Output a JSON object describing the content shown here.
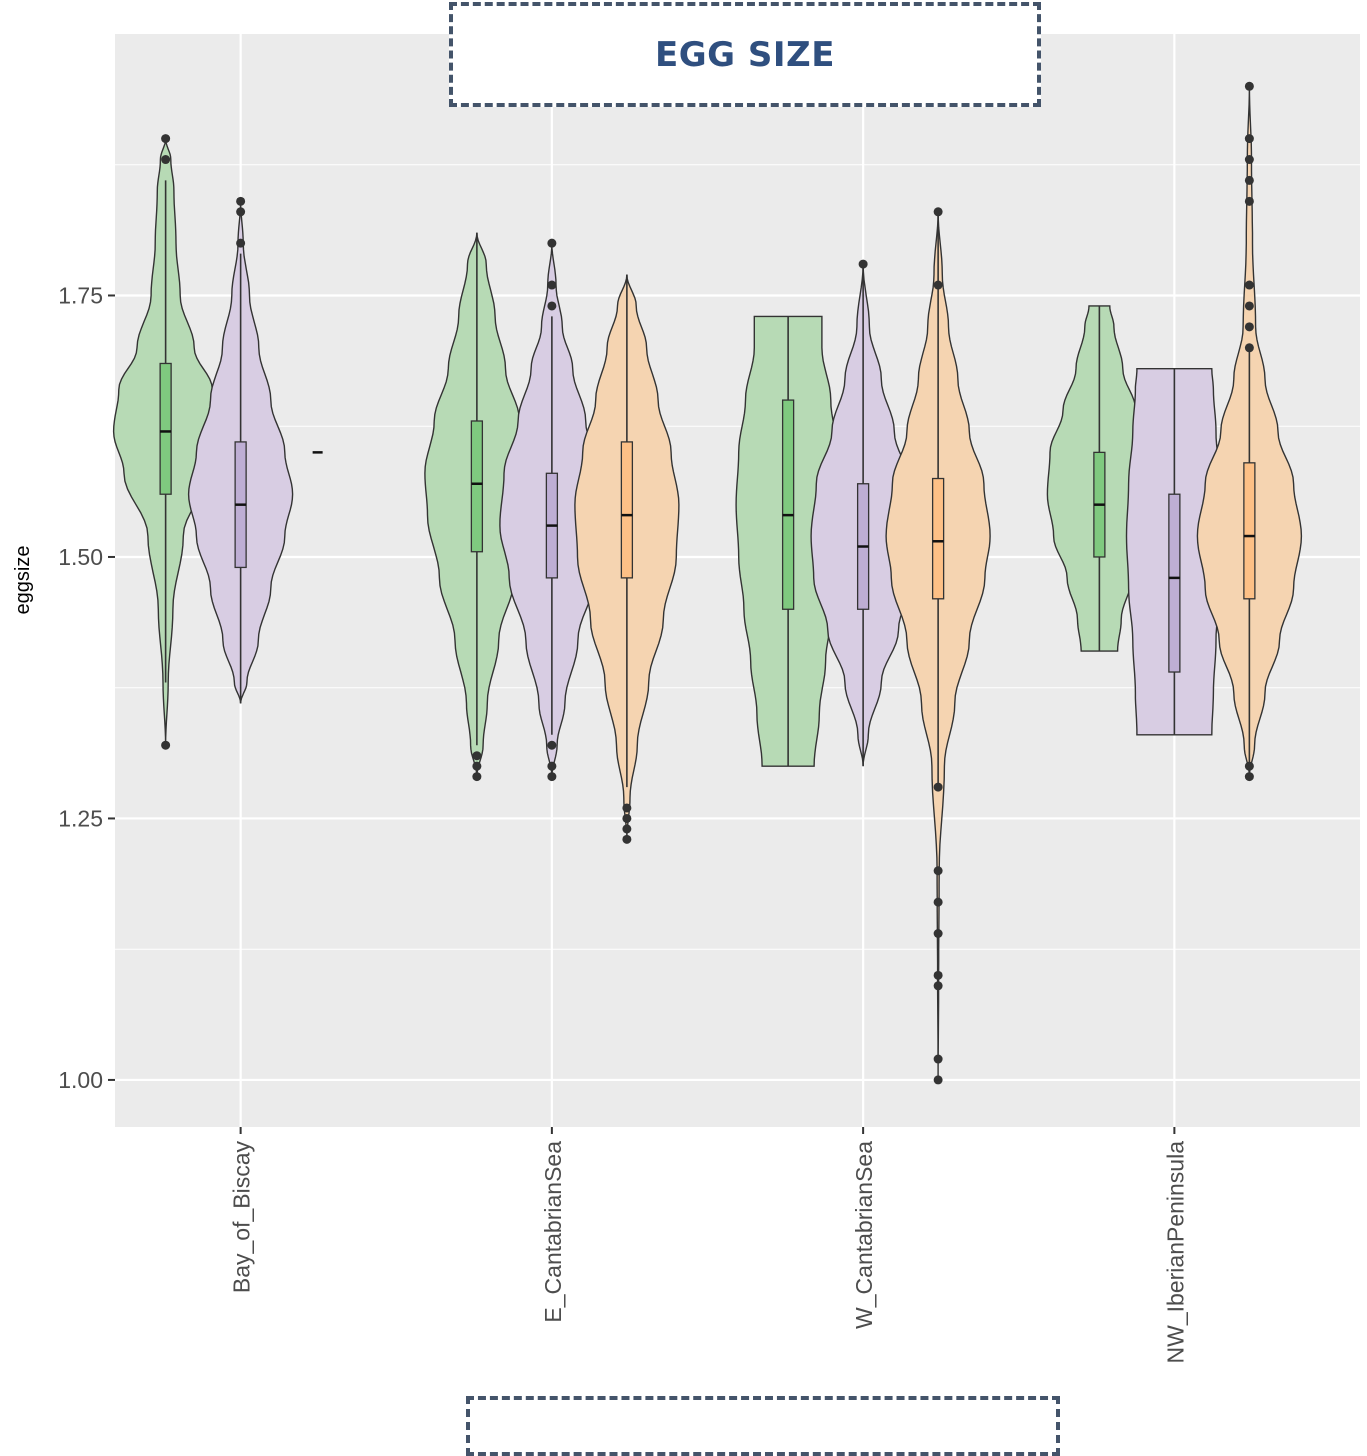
{
  "title": "EGG SIZE",
  "chart_data": {
    "type": "violin",
    "ylabel": "eggsize",
    "xlabel": "",
    "ylim": [
      0.955,
      2.0
    ],
    "yticks": [
      1.0,
      1.25,
      1.5,
      1.75
    ],
    "ytick_labels": [
      "1.00",
      "1.25",
      "1.50",
      "1.75"
    ],
    "grid": true,
    "background": "#ebebeb",
    "categories": [
      "Bay_of_Biscay",
      "E_CantabrianSea",
      "W_CantabrianSea",
      "NW_IberianPeninsula"
    ],
    "series_colors": [
      "#b7dab5",
      "#d8cde3",
      "#f5d4b1"
    ],
    "box_colors": [
      "#7fc97f",
      "#beaed4",
      "#fdc086"
    ],
    "groups": [
      {
        "category": "Bay_of_Biscay",
        "violins": [
          {
            "series": 0,
            "min": 1.32,
            "max": 1.9,
            "profile": [
              [
                1.32,
                0.0
              ],
              [
                1.38,
                0.05
              ],
              [
                1.45,
                0.14
              ],
              [
                1.52,
                0.34
              ],
              [
                1.58,
                0.8
              ],
              [
                1.62,
                1.0
              ],
              [
                1.66,
                0.9
              ],
              [
                1.7,
                0.55
              ],
              [
                1.75,
                0.28
              ],
              [
                1.8,
                0.2
              ],
              [
                1.85,
                0.16
              ],
              [
                1.88,
                0.1
              ],
              [
                1.9,
                0.0
              ]
            ],
            "box": {
              "q1": 1.56,
              "median": 1.62,
              "q3": 1.685,
              "wlo": 1.38,
              "whi": 1.86
            },
            "outliers": [
              1.32,
              1.88,
              1.9
            ]
          },
          {
            "series": 1,
            "min": 1.36,
            "max": 1.84,
            "profile": [
              [
                1.36,
                0.0
              ],
              [
                1.38,
                0.12
              ],
              [
                1.42,
                0.34
              ],
              [
                1.47,
                0.58
              ],
              [
                1.52,
                0.85
              ],
              [
                1.56,
                1.0
              ],
              [
                1.6,
                0.85
              ],
              [
                1.65,
                0.58
              ],
              [
                1.7,
                0.35
              ],
              [
                1.75,
                0.17
              ],
              [
                1.8,
                0.05
              ],
              [
                1.84,
                0.0
              ]
            ],
            "box": {
              "q1": 1.49,
              "median": 1.55,
              "q3": 1.61,
              "wlo": 1.36,
              "whi": 1.79
            },
            "outliers": [
              1.8,
              1.83,
              1.84
            ],
            "extra_median": 1.6
          }
        ]
      },
      {
        "category": "E_CantabrianSea",
        "violins": [
          {
            "series": 0,
            "min": 1.29,
            "max": 1.81,
            "profile": [
              [
                1.29,
                0.0
              ],
              [
                1.32,
                0.12
              ],
              [
                1.36,
                0.2
              ],
              [
                1.42,
                0.42
              ],
              [
                1.48,
                0.72
              ],
              [
                1.54,
                0.95
              ],
              [
                1.58,
                1.0
              ],
              [
                1.63,
                0.82
              ],
              [
                1.68,
                0.55
              ],
              [
                1.73,
                0.35
              ],
              [
                1.78,
                0.18
              ],
              [
                1.81,
                0.0
              ]
            ],
            "box": {
              "q1": 1.505,
              "median": 1.57,
              "q3": 1.63,
              "wlo": 1.32,
              "whi": 1.81
            },
            "outliers": [
              1.29,
              1.3,
              1.31
            ]
          },
          {
            "series": 1,
            "min": 1.29,
            "max": 1.8,
            "profile": [
              [
                1.29,
                0.0
              ],
              [
                1.32,
                0.1
              ],
              [
                1.36,
                0.25
              ],
              [
                1.42,
                0.5
              ],
              [
                1.48,
                0.82
              ],
              [
                1.53,
                1.0
              ],
              [
                1.58,
                0.92
              ],
              [
                1.63,
                0.65
              ],
              [
                1.68,
                0.4
              ],
              [
                1.72,
                0.2
              ],
              [
                1.76,
                0.08
              ],
              [
                1.8,
                0.0
              ]
            ],
            "box": {
              "q1": 1.48,
              "median": 1.53,
              "q3": 1.58,
              "wlo": 1.33,
              "whi": 1.73
            },
            "outliers": [
              1.29,
              1.3,
              1.32,
              1.74,
              1.76,
              1.8
            ]
          },
          {
            "series": 2,
            "min": 1.23,
            "max": 1.77,
            "profile": [
              [
                1.23,
                0.0
              ],
              [
                1.27,
                0.06
              ],
              [
                1.32,
                0.2
              ],
              [
                1.38,
                0.42
              ],
              [
                1.44,
                0.7
              ],
              [
                1.5,
                0.95
              ],
              [
                1.55,
                1.0
              ],
              [
                1.6,
                0.85
              ],
              [
                1.65,
                0.6
              ],
              [
                1.7,
                0.38
              ],
              [
                1.74,
                0.18
              ],
              [
                1.77,
                0.0
              ]
            ],
            "box": {
              "q1": 1.48,
              "median": 1.54,
              "q3": 1.61,
              "wlo": 1.28,
              "whi": 1.77
            },
            "outliers": [
              1.23,
              1.24,
              1.25,
              1.26
            ]
          }
        ]
      },
      {
        "category": "W_CantabrianSea",
        "violins": [
          {
            "series": 0,
            "min": 1.3,
            "max": 1.73,
            "profile": [
              [
                1.3,
                0.5
              ],
              [
                1.35,
                0.6
              ],
              [
                1.4,
                0.72
              ],
              [
                1.45,
                0.85
              ],
              [
                1.5,
                0.95
              ],
              [
                1.55,
                1.0
              ],
              [
                1.6,
                0.95
              ],
              [
                1.65,
                0.82
              ],
              [
                1.7,
                0.65
              ],
              [
                1.73,
                0.65
              ]
            ],
            "box": {
              "q1": 1.45,
              "median": 1.54,
              "q3": 1.65,
              "wlo": 1.3,
              "whi": 1.73
            },
            "outliers": []
          },
          {
            "series": 1,
            "min": 1.3,
            "max": 1.78,
            "profile": [
              [
                1.3,
                0.0
              ],
              [
                1.33,
                0.1
              ],
              [
                1.38,
                0.35
              ],
              [
                1.43,
                0.68
              ],
              [
                1.48,
                0.95
              ],
              [
                1.52,
                1.0
              ],
              [
                1.57,
                0.9
              ],
              [
                1.62,
                0.6
              ],
              [
                1.67,
                0.35
              ],
              [
                1.72,
                0.12
              ],
              [
                1.78,
                0.0
              ]
            ],
            "box": {
              "q1": 1.45,
              "median": 1.51,
              "q3": 1.57,
              "wlo": 1.3,
              "whi": 1.78
            },
            "outliers": [
              1.78
            ]
          },
          {
            "series": 2,
            "min": 1.0,
            "max": 1.83,
            "profile": [
              [
                1.0,
                0.0
              ],
              [
                1.1,
                0.01
              ],
              [
                1.2,
                0.02
              ],
              [
                1.3,
                0.12
              ],
              [
                1.36,
                0.32
              ],
              [
                1.42,
                0.6
              ],
              [
                1.48,
                0.9
              ],
              [
                1.52,
                1.0
              ],
              [
                1.57,
                0.88
              ],
              [
                1.62,
                0.6
              ],
              [
                1.67,
                0.38
              ],
              [
                1.72,
                0.2
              ],
              [
                1.77,
                0.08
              ],
              [
                1.83,
                0.0
              ]
            ],
            "box": {
              "q1": 1.46,
              "median": 1.515,
              "q3": 1.575,
              "wlo": 1.28,
              "whi": 1.83
            },
            "outliers": [
              1.0,
              1.02,
              1.09,
              1.1,
              1.14,
              1.17,
              1.2,
              1.28,
              1.76,
              1.83
            ]
          }
        ]
      },
      {
        "category": "NW_IberianPeninsula",
        "violins": [
          {
            "series": 0,
            "min": 1.41,
            "max": 1.74,
            "profile": [
              [
                1.41,
                0.35
              ],
              [
                1.44,
                0.42
              ],
              [
                1.48,
                0.62
              ],
              [
                1.52,
                0.88
              ],
              [
                1.56,
                1.0
              ],
              [
                1.6,
                0.95
              ],
              [
                1.64,
                0.7
              ],
              [
                1.68,
                0.45
              ],
              [
                1.72,
                0.28
              ],
              [
                1.74,
                0.2
              ]
            ],
            "box": {
              "q1": 1.5,
              "median": 1.55,
              "q3": 1.6,
              "wlo": 1.41,
              "whi": 1.74
            },
            "outliers": []
          },
          {
            "series": 1,
            "min": 1.33,
            "max": 1.68,
            "profile": [
              [
                1.33,
                0.72
              ],
              [
                1.37,
                0.75
              ],
              [
                1.42,
                0.8
              ],
              [
                1.47,
                0.88
              ],
              [
                1.52,
                0.92
              ],
              [
                1.57,
                0.88
              ],
              [
                1.62,
                0.8
              ],
              [
                1.66,
                0.75
              ],
              [
                1.68,
                0.72
              ]
            ],
            "box": {
              "q1": 1.39,
              "median": 1.48,
              "q3": 1.56,
              "wlo": 1.33,
              "whi": 1.68
            },
            "outliers": []
          },
          {
            "series": 2,
            "min": 1.29,
            "max": 1.95,
            "profile": [
              [
                1.29,
                0.0
              ],
              [
                1.32,
                0.1
              ],
              [
                1.37,
                0.3
              ],
              [
                1.42,
                0.58
              ],
              [
                1.47,
                0.85
              ],
              [
                1.52,
                1.0
              ],
              [
                1.57,
                0.85
              ],
              [
                1.62,
                0.55
              ],
              [
                1.67,
                0.3
              ],
              [
                1.72,
                0.12
              ],
              [
                1.8,
                0.06
              ],
              [
                1.88,
                0.04
              ],
              [
                1.95,
                0.0
              ]
            ],
            "box": {
              "q1": 1.46,
              "median": 1.52,
              "q3": 1.59,
              "wlo": 1.3,
              "whi": 1.7
            },
            "outliers": [
              1.29,
              1.3,
              1.7,
              1.72,
              1.74,
              1.76,
              1.84,
              1.86,
              1.88,
              1.9,
              1.95
            ]
          }
        ]
      }
    ]
  }
}
